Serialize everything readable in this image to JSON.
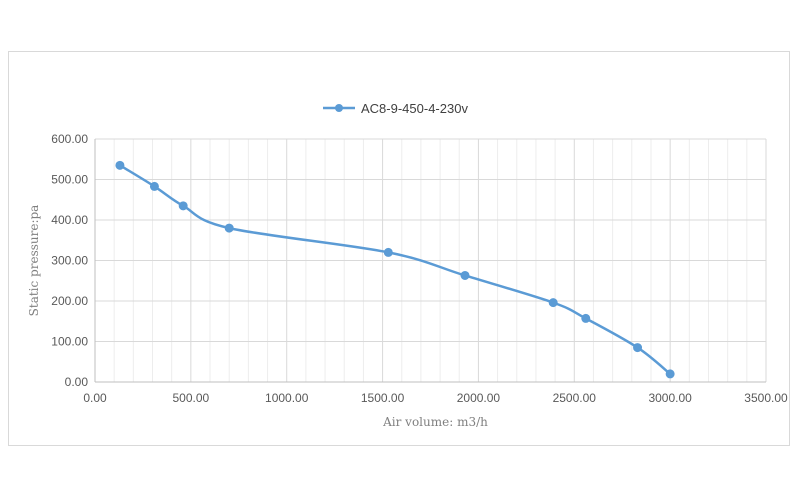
{
  "chart_data": {
    "type": "line",
    "title": "",
    "xlabel": "Air volume: m3/h",
    "ylabel": "Static pressure:pa",
    "xlim": [
      0,
      3500
    ],
    "ylim": [
      0,
      600
    ],
    "x_ticks": [
      "0.00",
      "500.00",
      "1000.00",
      "1500.00",
      "2000.00",
      "2500.00",
      "3000.00",
      "3500.00"
    ],
    "y_ticks": [
      "0.00",
      "100.00",
      "200.00",
      "300.00",
      "400.00",
      "500.00",
      "600.00"
    ],
    "x_major_step": 500,
    "x_minor_step": 100,
    "y_major_step": 100,
    "grid": true,
    "smooth": true,
    "legend_position": "top",
    "series": [
      {
        "name": "AC8-9-450-4-230v",
        "color": "#5b9bd5",
        "x": [
          130,
          310,
          460,
          700,
          1530,
          1930,
          2390,
          2560,
          2830,
          3000
        ],
        "y": [
          535,
          483,
          435,
          380,
          320,
          263,
          196,
          157,
          85,
          20
        ]
      }
    ]
  }
}
